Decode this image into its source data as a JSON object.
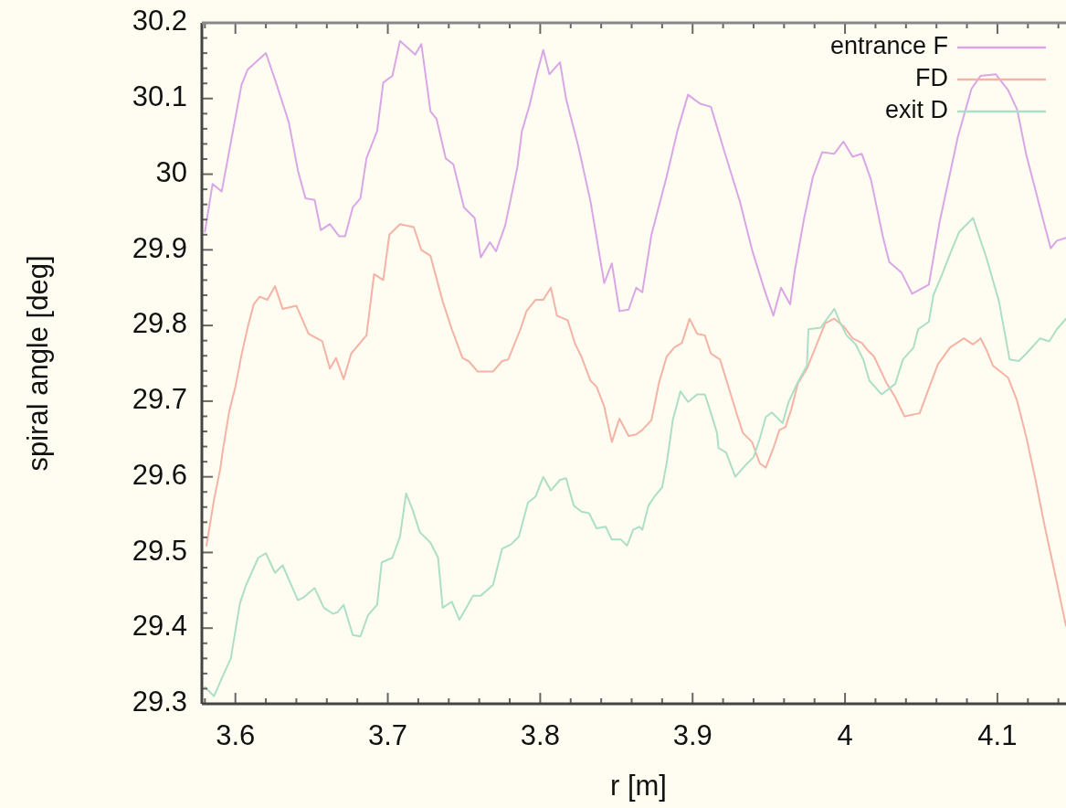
{
  "chart_data": {
    "type": "line",
    "xlabel": "r [m]",
    "ylabel": "spiral angle [deg]",
    "legend": "top right",
    "xlim": [
      3.578,
      4.145
    ],
    "ylim": [
      29.3,
      30.2
    ],
    "xticks": [
      {
        "value": 3.58,
        "label": null
      },
      3.6,
      {
        "value": 3.62,
        "label": null
      },
      {
        "value": 3.64,
        "label": null
      },
      {
        "value": 3.66,
        "label": null
      },
      {
        "value": 3.68,
        "label": null
      },
      3.7,
      {
        "value": 3.72,
        "label": null
      },
      {
        "value": 3.74,
        "label": null
      },
      {
        "value": 3.76,
        "label": null
      },
      {
        "value": 3.78,
        "label": null
      },
      3.8,
      {
        "value": 3.82,
        "label": null
      },
      {
        "value": 3.84,
        "label": null
      },
      {
        "value": 3.86,
        "label": null
      },
      {
        "value": 3.88,
        "label": null
      },
      3.9,
      {
        "value": 3.92,
        "label": null
      },
      {
        "value": 3.94,
        "label": null
      },
      {
        "value": 3.96,
        "label": null
      },
      {
        "value": 3.98,
        "label": null
      },
      4,
      {
        "value": 4.02,
        "label": null
      },
      {
        "value": 4.04,
        "label": null
      },
      {
        "value": 4.06,
        "label": null
      },
      {
        "value": 4.08,
        "label": null
      },
      4.1,
      {
        "value": 4.12,
        "label": null
      },
      {
        "value": 4.14,
        "label": null
      }
    ],
    "yticks": [
      29.3,
      {
        "value": 29.32,
        "label": null
      },
      {
        "value": 29.34,
        "label": null
      },
      {
        "value": 29.36,
        "label": null
      },
      {
        "value": 29.38,
        "label": null
      },
      29.4,
      {
        "value": 29.42,
        "label": null
      },
      {
        "value": 29.44,
        "label": null
      },
      {
        "value": 29.46,
        "label": null
      },
      {
        "value": 29.48,
        "label": null
      },
      29.5,
      {
        "value": 29.52,
        "label": null
      },
      {
        "value": 29.54,
        "label": null
      },
      {
        "value": 29.56,
        "label": null
      },
      {
        "value": 29.58,
        "label": null
      },
      29.6,
      {
        "value": 29.62,
        "label": null
      },
      {
        "value": 29.64,
        "label": null
      },
      {
        "value": 29.66,
        "label": null
      },
      {
        "value": 29.68,
        "label": null
      },
      29.7,
      {
        "value": 29.72,
        "label": null
      },
      {
        "value": 29.74,
        "label": null
      },
      {
        "value": 29.76,
        "label": null
      },
      {
        "value": 29.78,
        "label": null
      },
      29.8,
      {
        "value": 29.82,
        "label": null
      },
      {
        "value": 29.84,
        "label": null
      },
      {
        "value": 29.86,
        "label": null
      },
      {
        "value": 29.88,
        "label": null
      },
      29.9,
      {
        "value": 29.92,
        "label": null
      },
      {
        "value": 29.94,
        "label": null
      },
      {
        "value": 29.96,
        "label": null
      },
      {
        "value": 29.98,
        "label": null
      },
      30,
      {
        "value": 30.02,
        "label": null
      },
      {
        "value": 30.04,
        "label": null
      },
      {
        "value": 30.06,
        "label": null
      },
      {
        "value": 30.08,
        "label": null
      },
      30.1,
      {
        "value": 30.12,
        "label": null
      },
      {
        "value": 30.14,
        "label": null
      },
      {
        "value": 30.16,
        "label": null
      },
      {
        "value": 30.18,
        "label": null
      },
      30.2
    ],
    "series": [
      {
        "name": "entrance F",
        "color": "#d9a6e6",
        "x": [
          3.58,
          3.585,
          3.591,
          3.596,
          3.604,
          3.608,
          3.62,
          3.626,
          3.635,
          3.641,
          3.646,
          3.652,
          3.656,
          3.662,
          3.668,
          3.672,
          3.677,
          3.682,
          3.686,
          3.693,
          3.697,
          3.703,
          3.708,
          3.718,
          3.722,
          3.726,
          3.728,
          3.732,
          3.738,
          3.743,
          3.75,
          3.757,
          3.761,
          3.767,
          3.771,
          3.777,
          3.785,
          3.788,
          3.793,
          3.798,
          3.802,
          3.806,
          3.813,
          3.817,
          3.825,
          3.833,
          3.842,
          3.847,
          3.852,
          3.858,
          3.863,
          3.867,
          3.873,
          3.883,
          3.89,
          3.897,
          3.905,
          3.912,
          3.921,
          3.931,
          3.939,
          3.947,
          3.953,
          3.958,
          3.964,
          3.967,
          3.973,
          3.979,
          3.985,
          3.993,
          3.999,
          4.005,
          4.011,
          4.017,
          4.025,
          4.029,
          4.037,
          4.044,
          4.055,
          4.062,
          4.074,
          4.083,
          4.089,
          4.099,
          4.107,
          4.113,
          4.119,
          4.131,
          4.135,
          4.139,
          4.145
        ],
        "values": [
          29.924,
          29.987,
          29.977,
          30.031,
          30.118,
          30.138,
          30.16,
          30.125,
          30.069,
          30.005,
          29.968,
          29.966,
          29.926,
          29.934,
          29.918,
          29.918,
          29.956,
          29.968,
          30.021,
          30.057,
          30.121,
          30.13,
          30.176,
          30.158,
          30.172,
          30.113,
          30.083,
          30.073,
          30.021,
          30.013,
          29.956,
          29.942,
          29.89,
          29.91,
          29.898,
          29.932,
          30.009,
          30.057,
          30.091,
          30.134,
          30.164,
          30.132,
          30.148,
          30.099,
          30.037,
          29.964,
          29.856,
          29.882,
          29.819,
          29.821,
          29.85,
          29.844,
          29.92,
          29.997,
          30.057,
          30.105,
          30.093,
          30.089,
          30.029,
          29.964,
          29.9,
          29.848,
          29.813,
          29.85,
          29.828,
          29.872,
          29.94,
          29.997,
          30.029,
          30.027,
          30.043,
          30.023,
          30.027,
          29.993,
          29.916,
          29.884,
          29.87,
          29.842,
          29.854,
          29.936,
          30.049,
          30.113,
          30.13,
          30.132,
          30.111,
          30.085,
          30.025,
          29.932,
          29.902,
          29.912,
          29.916
        ]
      },
      {
        "name": "FD",
        "color": "#f4b3a4",
        "x": [
          3.581,
          3.586,
          3.59,
          3.592,
          3.596,
          3.6,
          3.604,
          3.608,
          3.612,
          3.616,
          3.621,
          3.626,
          3.631,
          3.64,
          3.648,
          3.657,
          3.662,
          3.666,
          3.671,
          3.676,
          3.686,
          3.691,
          3.697,
          3.701,
          3.708,
          3.717,
          3.722,
          3.728,
          3.736,
          3.742,
          3.749,
          3.753,
          3.759,
          3.769,
          3.775,
          3.779,
          3.787,
          3.791,
          3.797,
          3.802,
          3.807,
          3.811,
          3.818,
          3.823,
          3.827,
          3.833,
          3.837,
          3.842,
          3.847,
          3.852,
          3.858,
          3.863,
          3.867,
          3.873,
          3.878,
          3.883,
          3.888,
          3.893,
          3.898,
          3.903,
          3.908,
          3.912,
          3.918,
          3.929,
          3.933,
          3.939,
          3.944,
          3.948,
          3.953,
          3.957,
          3.961,
          3.965,
          3.969,
          3.975,
          3.987,
          3.993,
          3.999,
          4.005,
          4.011,
          4.015,
          4.019,
          4.027,
          4.033,
          4.039,
          4.049,
          4.055,
          4.061,
          4.069,
          4.078,
          4.084,
          4.089,
          4.093,
          4.097,
          4.107,
          4.113,
          4.119,
          4.125,
          4.131,
          4.137,
          4.145
        ],
        "values": [
          29.509,
          29.57,
          29.61,
          29.638,
          29.687,
          29.719,
          29.761,
          29.797,
          29.828,
          29.838,
          29.834,
          29.852,
          29.822,
          29.826,
          29.789,
          29.779,
          29.743,
          29.757,
          29.729,
          29.763,
          29.787,
          29.868,
          29.86,
          29.92,
          29.934,
          29.93,
          29.9,
          29.892,
          29.832,
          29.795,
          29.757,
          29.753,
          29.739,
          29.739,
          29.753,
          29.755,
          29.795,
          29.819,
          29.834,
          29.834,
          29.85,
          29.813,
          29.807,
          29.775,
          29.759,
          29.727,
          29.719,
          29.693,
          29.646,
          29.677,
          29.654,
          29.656,
          29.662,
          29.675,
          29.725,
          29.759,
          29.771,
          29.777,
          29.809,
          29.789,
          29.787,
          29.763,
          29.755,
          29.683,
          29.658,
          29.646,
          29.618,
          29.612,
          29.638,
          29.662,
          29.666,
          29.691,
          29.723,
          29.743,
          29.803,
          29.809,
          29.799,
          29.783,
          29.777,
          29.767,
          29.759,
          29.725,
          29.705,
          29.68,
          29.684,
          29.717,
          29.749,
          29.771,
          29.783,
          29.775,
          29.783,
          29.767,
          29.747,
          29.731,
          29.7,
          29.652,
          29.596,
          29.535,
          29.479,
          29.403
        ]
      },
      {
        "name": "exit D",
        "color": "#acdfc6",
        "x": [
          3.58,
          3.586,
          3.592,
          3.597,
          3.603,
          3.607,
          3.615,
          3.62,
          3.626,
          3.631,
          3.641,
          3.645,
          3.652,
          3.658,
          3.664,
          3.667,
          3.671,
          3.677,
          3.682,
          3.687,
          3.693,
          3.696,
          3.703,
          3.708,
          3.712,
          3.716,
          3.721,
          3.728,
          3.733,
          3.736,
          3.742,
          3.747,
          3.756,
          3.761,
          3.769,
          3.775,
          3.781,
          3.786,
          3.792,
          3.797,
          3.802,
          3.807,
          3.813,
          3.817,
          3.822,
          3.827,
          3.832,
          3.837,
          3.843,
          3.847,
          3.853,
          3.857,
          3.861,
          3.865,
          3.867,
          3.871,
          3.875,
          3.88,
          3.883,
          3.887,
          3.892,
          3.897,
          3.903,
          3.908,
          3.911,
          3.916,
          3.917,
          3.922,
          3.928,
          3.935,
          3.94,
          3.944,
          3.948,
          3.952,
          3.959,
          3.963,
          3.969,
          3.975,
          3.976,
          3.984,
          3.989,
          3.993,
          3.997,
          4.001,
          4.007,
          4.012,
          4.016,
          4.024,
          4.033,
          4.038,
          4.045,
          4.048,
          4.055,
          4.058,
          4.063,
          4.07,
          4.075,
          4.084,
          4.093,
          4.101,
          4.108,
          4.114,
          4.119,
          4.128,
          4.134,
          4.139,
          4.145
        ],
        "values": [
          29.322,
          29.31,
          29.338,
          29.36,
          29.433,
          29.457,
          29.493,
          29.499,
          29.473,
          29.483,
          29.437,
          29.441,
          29.453,
          29.427,
          29.419,
          29.421,
          29.431,
          29.391,
          29.389,
          29.417,
          29.431,
          29.487,
          29.493,
          29.521,
          29.578,
          29.558,
          29.527,
          29.513,
          29.493,
          29.427,
          29.435,
          29.411,
          29.443,
          29.443,
          29.457,
          29.505,
          29.511,
          29.521,
          29.566,
          29.574,
          29.6,
          29.582,
          29.596,
          29.598,
          29.562,
          29.554,
          29.552,
          29.532,
          29.534,
          29.517,
          29.517,
          29.509,
          29.53,
          29.534,
          29.53,
          29.562,
          29.574,
          29.586,
          29.618,
          29.675,
          29.713,
          29.699,
          29.709,
          29.709,
          29.691,
          29.658,
          29.638,
          29.632,
          29.6,
          29.616,
          29.626,
          29.65,
          29.679,
          29.685,
          29.671,
          29.699,
          29.725,
          29.747,
          29.795,
          29.797,
          29.811,
          29.822,
          29.803,
          29.787,
          29.775,
          29.755,
          29.727,
          29.709,
          29.723,
          29.755,
          29.771,
          29.795,
          29.805,
          29.84,
          29.864,
          29.9,
          29.924,
          29.942,
          29.888,
          29.832,
          29.755,
          29.753,
          29.763,
          29.783,
          29.779,
          29.795,
          29.809
        ]
      }
    ]
  }
}
